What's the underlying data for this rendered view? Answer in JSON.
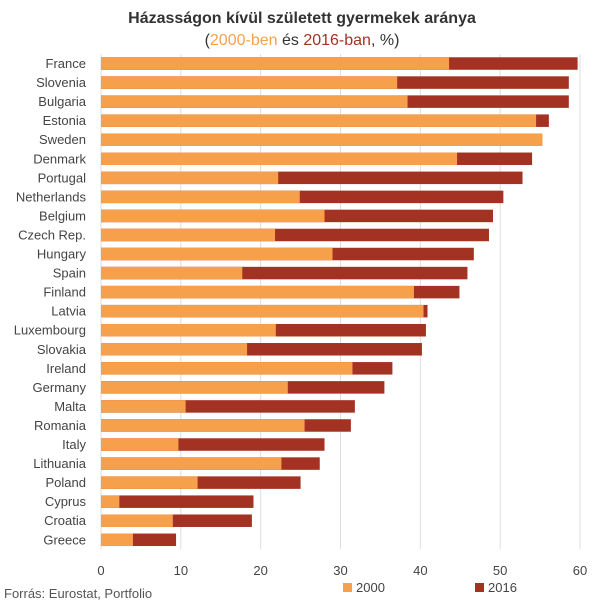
{
  "chart_data": {
    "type": "bar",
    "orientation": "horizontal",
    "stacking": "overlay",
    "title": "Házasságon kívül született gyermekek aránya",
    "subtitle": {
      "open": "(",
      "year1": "2000-ben",
      "mid": " és ",
      "year2": "2016-ban",
      "close": ", %)"
    },
    "categories": [
      "France",
      "Slovenia",
      "Bulgaria",
      "Estonia",
      "Sweden",
      "Denmark",
      "Portugal",
      "Netherlands",
      "Belgium",
      "Czech Rep.",
      "Hungary",
      "Spain",
      "Finland",
      "Latvia",
      "Luxembourg",
      "Slovakia",
      "Ireland",
      "Germany",
      "Malta",
      "Romania",
      "Italy",
      "Lithuania",
      "Poland",
      "Cyprus",
      "Croatia",
      "Greece"
    ],
    "series": [
      {
        "name": "2000",
        "color": "#f7a04b",
        "values": [
          43.6,
          37.1,
          38.4,
          54.5,
          55.3,
          44.6,
          22.2,
          24.9,
          28.0,
          21.8,
          29.0,
          17.7,
          39.2,
          40.4,
          21.9,
          18.3,
          31.5,
          23.4,
          10.6,
          25.5,
          9.7,
          22.6,
          12.1,
          2.3,
          9.0,
          4.0
        ]
      },
      {
        "name": "2016",
        "color": "#a33222",
        "values": [
          59.7,
          58.6,
          58.6,
          56.1,
          54.9,
          54.0,
          52.8,
          50.4,
          49.1,
          48.6,
          46.7,
          45.9,
          44.9,
          40.9,
          40.7,
          40.2,
          36.5,
          35.5,
          31.8,
          31.3,
          28.0,
          27.4,
          25.0,
          19.1,
          18.9,
          9.4
        ]
      }
    ],
    "xlim": [
      0,
      60
    ],
    "xticks": [
      0,
      10,
      20,
      30,
      40,
      50,
      60
    ],
    "grid": true,
    "legend": {
      "position": "bottom-right",
      "labels": [
        "2000",
        "2016"
      ]
    },
    "source": "Forrás: Eurostat, Portfolio"
  }
}
